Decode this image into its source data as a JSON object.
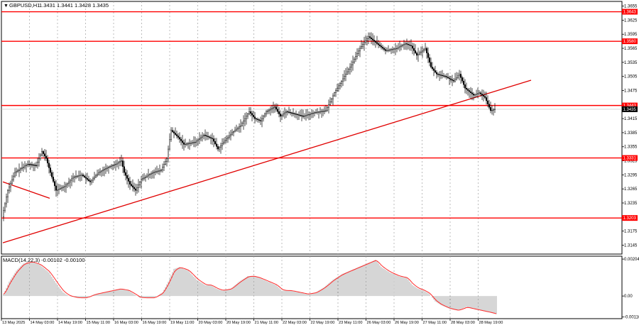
{
  "header": {
    "symbol_label": "GBPUSD,H1",
    "ohlc": "1.3431 1.3441 1.3428 1.3435"
  },
  "macd": {
    "label": "MACD(14,22,3) -0.00102 -0.00100",
    "ticks": [
      {
        "value": 0.00204,
        "label": "0.00204"
      },
      {
        "value": 0.0,
        "label": "0.00"
      },
      {
        "value": -0.00116,
        "label": "-0.00116"
      }
    ]
  },
  "colors": {
    "background": "#ffffff",
    "frame": "#000000",
    "grid": "#a0a0a0",
    "candle": "#000000",
    "level_line": "#ff0000",
    "trend_line": "#e00000",
    "price_badge": "#ff0000",
    "current_badge": "#000000",
    "macd_hist": "#9a9a9a",
    "macd_signal": "#ff2a2a"
  },
  "chart_data": {
    "type": "candlestick",
    "symbol": "GBPUSD",
    "timeframe": "H1",
    "price_axis": {
      "ylim": [
        1.3126,
        1.3665
      ],
      "ticks": [
        "1.3655",
        "1.3625",
        "1.3595",
        "1.3565",
        "1.3535",
        "1.3505",
        "1.3475",
        "1.3445",
        "1.3415",
        "1.3385",
        "1.3355",
        "1.3325",
        "1.3295",
        "1.3265",
        "1.3235",
        "1.3205",
        "1.3175",
        "1.3145"
      ]
    },
    "horizontal_levels": [
      {
        "value": 1.3643,
        "label": "1.3643"
      },
      {
        "value": 1.358,
        "label": "1.3580"
      },
      {
        "value": 1.3443,
        "label": "1.3443"
      },
      {
        "value": 1.3331,
        "label": "1.3331"
      },
      {
        "value": 1.3203,
        "label": "1.3203"
      }
    ],
    "current_price": {
      "value": 1.3435,
      "label": "1.3435"
    },
    "time_axis": {
      "labels": [
        "13 May 2025",
        "14 May 03:00",
        "14 May 19:00",
        "15 May 11:00",
        "16 May 03:00",
        "16 May 19:00",
        "19 May 11:00",
        "20 May 03:00",
        "20 May 19:00",
        "21 May 11:00",
        "22 May 03:00",
        "22 May 19:00",
        "23 May 11:00",
        "26 May 03:00",
        "26 May 19:00",
        "27 May 11:00",
        "28 May 03:00",
        "28 May 19:00"
      ]
    },
    "price_path": [
      [
        0,
        1.3205
      ],
      [
        4,
        1.3262
      ],
      [
        9,
        1.33
      ],
      [
        14,
        1.331
      ],
      [
        18,
        1.3318
      ],
      [
        24,
        1.3315
      ],
      [
        28,
        1.3345
      ],
      [
        31,
        1.333
      ],
      [
        34,
        1.33
      ],
      [
        38,
        1.3262
      ],
      [
        44,
        1.327
      ],
      [
        50,
        1.329
      ],
      [
        56,
        1.3295
      ],
      [
        62,
        1.328
      ],
      [
        68,
        1.33
      ],
      [
        74,
        1.331
      ],
      [
        80,
        1.3318
      ],
      [
        84,
        1.3325
      ],
      [
        86,
        1.33
      ],
      [
        90,
        1.3275
      ],
      [
        94,
        1.3262
      ],
      [
        98,
        1.3285
      ],
      [
        106,
        1.33
      ],
      [
        112,
        1.3305
      ],
      [
        116,
        1.333
      ],
      [
        119,
        1.339
      ],
      [
        124,
        1.3375
      ],
      [
        128,
        1.336
      ],
      [
        136,
        1.3365
      ],
      [
        142,
        1.338
      ],
      [
        148,
        1.3372
      ],
      [
        152,
        1.335
      ],
      [
        156,
        1.3365
      ],
      [
        162,
        1.3385
      ],
      [
        168,
        1.34
      ],
      [
        174,
        1.343
      ],
      [
        178,
        1.3415
      ],
      [
        182,
        1.341
      ],
      [
        186,
        1.343
      ],
      [
        192,
        1.344
      ],
      [
        196,
        1.342
      ],
      [
        200,
        1.343
      ],
      [
        206,
        1.3425
      ],
      [
        212,
        1.342
      ],
      [
        220,
        1.3428
      ],
      [
        228,
        1.3432
      ],
      [
        234,
        1.347
      ],
      [
        240,
        1.35
      ],
      [
        246,
        1.353
      ],
      [
        252,
        1.3565
      ],
      [
        258,
        1.359
      ],
      [
        264,
        1.3575
      ],
      [
        270,
        1.356
      ],
      [
        278,
        1.3565
      ],
      [
        284,
        1.3575
      ],
      [
        288,
        1.357
      ],
      [
        292,
        1.355
      ],
      [
        298,
        1.3565
      ],
      [
        302,
        1.3525
      ],
      [
        306,
        1.351
      ],
      [
        312,
        1.3505
      ],
      [
        318,
        1.3495
      ],
      [
        322,
        1.351
      ],
      [
        326,
        1.348
      ],
      [
        332,
        1.3465
      ],
      [
        336,
        1.347
      ],
      [
        340,
        1.346
      ],
      [
        344,
        1.3432
      ],
      [
        347,
        1.3435
      ]
    ],
    "trend_lines": [
      {
        "points": [
          [
            0,
            1.315
          ],
          [
            372,
            1.3497
          ]
        ]
      },
      {
        "points": [
          [
            0,
            1.328
          ],
          [
            33,
            1.3245
          ]
        ]
      }
    ],
    "macd_histogram_path": [
      [
        0,
        0.0001
      ],
      [
        4,
        0.0008
      ],
      [
        9,
        0.0014
      ],
      [
        14,
        0.0018
      ],
      [
        20,
        0.0019
      ],
      [
        26,
        0.0017
      ],
      [
        32,
        0.0013
      ],
      [
        38,
        0.0006
      ],
      [
        42,
        0.0002
      ],
      [
        46,
        0.0
      ],
      [
        52,
        -0.0001
      ],
      [
        58,
        -0.0001
      ],
      [
        64,
        0.0001
      ],
      [
        70,
        0.0002
      ],
      [
        76,
        0.0003
      ],
      [
        82,
        0.0004
      ],
      [
        88,
        0.0003
      ],
      [
        92,
        0.0001
      ],
      [
        96,
        -0.0001
      ],
      [
        100,
        -0.0001
      ],
      [
        106,
        -0.0001
      ],
      [
        112,
        0.0002
      ],
      [
        116,
        0.0008
      ],
      [
        120,
        0.0015
      ],
      [
        124,
        0.0016
      ],
      [
        130,
        0.0014
      ],
      [
        136,
        0.0009
      ],
      [
        142,
        0.0006
      ],
      [
        146,
        0.0006
      ],
      [
        150,
        0.0004
      ],
      [
        154,
        0.0003
      ],
      [
        160,
        0.0004
      ],
      [
        166,
        0.0008
      ],
      [
        172,
        0.0011
      ],
      [
        176,
        0.0011
      ],
      [
        180,
        0.001
      ],
      [
        186,
        0.0008
      ],
      [
        192,
        0.0006
      ],
      [
        196,
        0.0003
      ],
      [
        202,
        0.0003
      ],
      [
        208,
        0.0002
      ],
      [
        214,
        0.0001
      ],
      [
        220,
        0.0002
      ],
      [
        226,
        0.0005
      ],
      [
        232,
        0.0009
      ],
      [
        238,
        0.0012
      ],
      [
        244,
        0.0014
      ],
      [
        250,
        0.0016
      ],
      [
        256,
        0.0018
      ],
      [
        262,
        0.002
      ],
      [
        266,
        0.0016
      ],
      [
        272,
        0.0013
      ],
      [
        278,
        0.0011
      ],
      [
        284,
        0.001
      ],
      [
        288,
        0.0006
      ],
      [
        292,
        0.0004
      ],
      [
        296,
        0.0003
      ],
      [
        300,
        0.0001
      ],
      [
        304,
        -0.0003
      ],
      [
        308,
        -0.0005
      ],
      [
        314,
        -0.0007
      ],
      [
        320,
        -0.0008
      ],
      [
        326,
        -0.0006
      ],
      [
        330,
        -0.0007
      ],
      [
        336,
        -0.0008
      ],
      [
        342,
        -0.0009
      ],
      [
        347,
        -0.001
      ]
    ]
  }
}
